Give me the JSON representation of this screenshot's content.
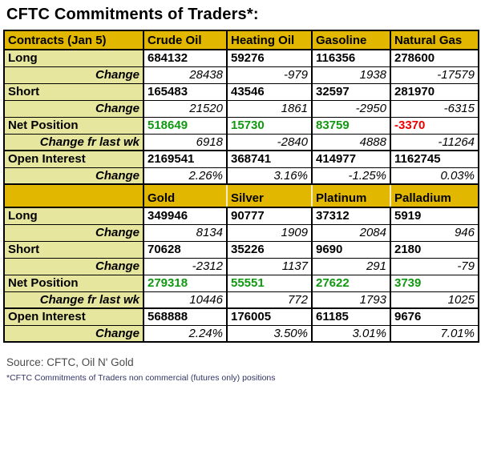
{
  "title": "CFTC Commitments of Traders*:",
  "colors": {
    "header_bg": "#e2b700",
    "label_bg": "#e6e69e",
    "positive": "#119911",
    "negative": "#ee0000"
  },
  "sections": [
    {
      "header": {
        "label": "Contracts (Jan 5)",
        "columns": [
          "Crude Oil",
          "Heating Oil",
          "Gasoline",
          "Natural Gas"
        ]
      },
      "rows": [
        {
          "label": "Long",
          "style": "bold",
          "values": [
            "684132",
            "59276",
            "116356",
            "278600"
          ]
        },
        {
          "label": "Change",
          "style": "change",
          "values": [
            "28438",
            "-979",
            "1938",
            "-17579"
          ]
        },
        {
          "label": "Short",
          "style": "bold",
          "values": [
            "165483",
            "43546",
            "32597",
            "281970"
          ]
        },
        {
          "label": "Change",
          "style": "change",
          "values": [
            "21520",
            "1861",
            "-2950",
            "-6315"
          ]
        },
        {
          "label": "Net Position",
          "style": "net",
          "values": [
            "518649",
            "15730",
            "83759",
            "-3370"
          ]
        },
        {
          "label": "Change fr last wk",
          "style": "change",
          "values": [
            "6918",
            "-2840",
            "4888",
            "-11264"
          ]
        },
        {
          "label": "Open Interest",
          "style": "bold",
          "thick_top": true,
          "values": [
            "2169541",
            "368741",
            "414977",
            "1162745"
          ]
        },
        {
          "label": "Change",
          "style": "change",
          "values": [
            "2.26%",
            "3.16%",
            "-1.25%",
            "0.03%"
          ]
        }
      ]
    },
    {
      "header": {
        "label": "",
        "columns": [
          "Gold",
          "Silver",
          "Platinum",
          "Palladium"
        ]
      },
      "rows": [
        {
          "label": "Long",
          "style": "bold",
          "values": [
            "349946",
            "90777",
            "37312",
            "5919"
          ]
        },
        {
          "label": "Change",
          "style": "change",
          "values": [
            "8134",
            "1909",
            "2084",
            "946"
          ]
        },
        {
          "label": "Short",
          "style": "bold",
          "values": [
            "70628",
            "35226",
            "9690",
            "2180"
          ]
        },
        {
          "label": "Change",
          "style": "change",
          "values": [
            "-2312",
            "1137",
            "291",
            "-79"
          ]
        },
        {
          "label": "Net Position",
          "style": "net",
          "values": [
            "279318",
            "55551",
            "27622",
            "3739"
          ]
        },
        {
          "label": "Change fr last wk",
          "style": "change",
          "values": [
            "10446",
            "772",
            "1793",
            "1025"
          ]
        },
        {
          "label": "Open Interest",
          "style": "bold",
          "thick_top": true,
          "values": [
            "568888",
            "176005",
            "61185",
            "9676"
          ]
        },
        {
          "label": "Change",
          "style": "change",
          "values": [
            "2.24%",
            "3.50%",
            "3.01%",
            "7.01%"
          ]
        }
      ]
    }
  ],
  "footer": {
    "source": "Source: CFTC, Oil N' Gold",
    "footnote": "*CFTC Commitments of Traders non commercial (futures only) positions"
  }
}
